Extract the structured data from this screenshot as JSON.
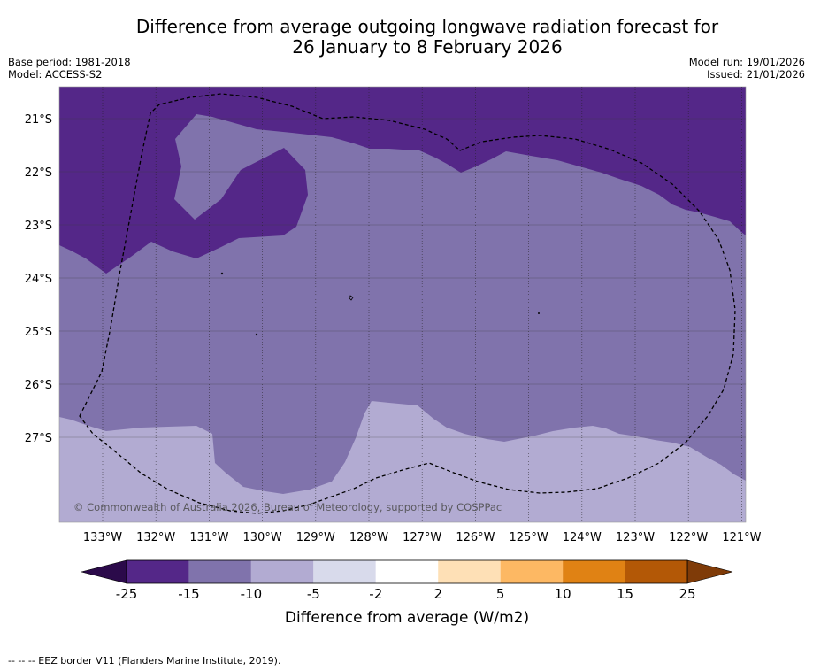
{
  "title": {
    "line1": "Difference from average outgoing longwave radiation forecast for",
    "line2": "26 January to 8 February 2026"
  },
  "meta": {
    "base_period": "Base period: 1981-2018",
    "model": "Model: ACCESS-S2",
    "model_run": "Model run: 19/01/2026",
    "issued": "Issued: 21/01/2026"
  },
  "map": {
    "lat_ticks": [
      "21°S",
      "22°S",
      "23°S",
      "24°S",
      "25°S",
      "26°S",
      "27°S"
    ],
    "lon_ticks": [
      "133°W",
      "132°W",
      "131°W",
      "130°W",
      "129°W",
      "128°W",
      "127°W",
      "126°W",
      "125°W",
      "124°W",
      "123°W",
      "122°W",
      "121°W"
    ],
    "credit": "© Commonwealth of Australia 2026, Bureau of Meteorology, supported by COSPPac",
    "region_categories": [
      "-25 to -15",
      "-15 to -10",
      "-10 to -5"
    ]
  },
  "colorbar": {
    "title": "Difference from average (W/m2)",
    "ticks": [
      "-25",
      "-15",
      "-10",
      "-5",
      "-2",
      "2",
      "5",
      "10",
      "15",
      "25"
    ],
    "colors": {
      "under": "#2b0a4a",
      "b1": "#542788",
      "b2": "#8073ac",
      "b3": "#b2abd2",
      "b4": "#d8daeb",
      "b5": "#ffffff",
      "b6": "#fee0b6",
      "b7": "#fdb863",
      "b8": "#e08214",
      "b9": "#b35806",
      "over": "#7f3b08"
    }
  },
  "footnote": "-- -- -- EEZ border V11 (Flanders Marine Institute, 2019)."
}
